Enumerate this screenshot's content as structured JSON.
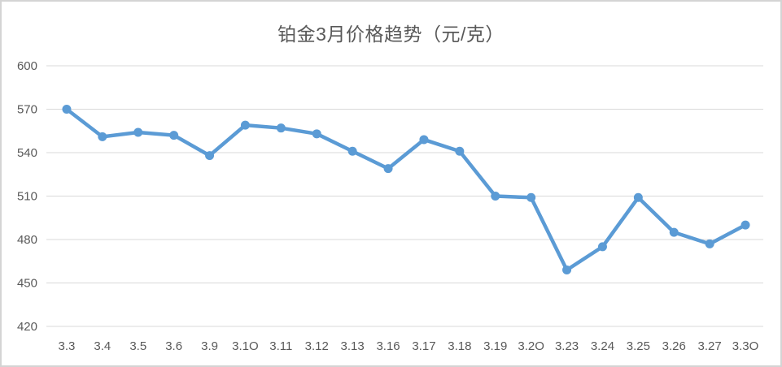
{
  "colors": {
    "line": "#5B9BD5",
    "marker": "#5B9BD5",
    "text": "#595959",
    "gridline": "#D9D9D9",
    "axis_line": "#D9D9D9",
    "border": "#D4D4D4",
    "background": "#FFFFFF"
  },
  "chart_data": {
    "type": "line",
    "title": "铂金3月价格趋势（元/克）",
    "categories": [
      "3.3",
      "3.4",
      "3.5",
      "3.6",
      "3.9",
      "3.1O",
      "3.11",
      "3.12",
      "3.13",
      "3.16",
      "3.17",
      "3.18",
      "3.19",
      "3.2O",
      "3.23",
      "3.24",
      "3.25",
      "3.26",
      "3.27",
      "3.3O"
    ],
    "values": [
      570,
      551,
      554,
      552,
      538,
      559,
      557,
      553,
      541,
      529,
      549,
      541,
      510,
      509,
      459,
      475,
      509,
      485,
      477,
      490
    ],
    "xlabel": "",
    "ylabel": "",
    "ylim": [
      420,
      600
    ],
    "yticks": [
      600,
      570,
      540,
      510,
      480,
      450,
      420
    ],
    "grid": true,
    "legend": false,
    "marker": "circle"
  }
}
